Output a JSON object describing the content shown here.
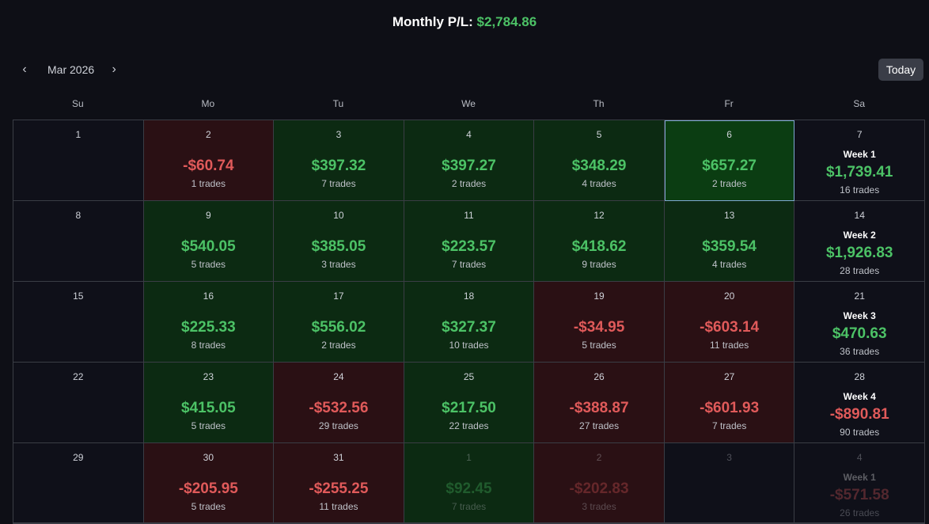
{
  "header": {
    "label": "Monthly P/L:",
    "amount": "$2,784.86"
  },
  "nav": {
    "month_label": "Mar 2026",
    "today_label": "Today"
  },
  "weekdays": [
    "Su",
    "Mo",
    "Tu",
    "We",
    "Th",
    "Fr",
    "Sa"
  ],
  "colors": {
    "positive": "#4cc266",
    "negative": "#e05a5a",
    "positive_bg": "#0c2a12",
    "negative_bg": "#2a1014"
  },
  "days": [
    {
      "day": "1",
      "pnl": "",
      "trades": "",
      "state": "empty"
    },
    {
      "day": "2",
      "pnl": "-$60.74",
      "trades": "1 trades",
      "state": "loss"
    },
    {
      "day": "3",
      "pnl": "$397.32",
      "trades": "7 trades",
      "state": "profit"
    },
    {
      "day": "4",
      "pnl": "$397.27",
      "trades": "2 trades",
      "state": "profit"
    },
    {
      "day": "5",
      "pnl": "$348.29",
      "trades": "4 trades",
      "state": "profit"
    },
    {
      "day": "6",
      "pnl": "$657.27",
      "trades": "2 trades",
      "state": "profit",
      "selected": true
    },
    {
      "week": "Week 1",
      "day": "7",
      "pnl": "$1,739.41",
      "trades": "16 trades",
      "state": "profit"
    },
    {
      "day": "8",
      "pnl": "",
      "trades": "",
      "state": "empty"
    },
    {
      "day": "9",
      "pnl": "$540.05",
      "trades": "5 trades",
      "state": "profit"
    },
    {
      "day": "10",
      "pnl": "$385.05",
      "trades": "3 trades",
      "state": "profit"
    },
    {
      "day": "11",
      "pnl": "$223.57",
      "trades": "7 trades",
      "state": "profit"
    },
    {
      "day": "12",
      "pnl": "$418.62",
      "trades": "9 trades",
      "state": "profit"
    },
    {
      "day": "13",
      "pnl": "$359.54",
      "trades": "4 trades",
      "state": "profit"
    },
    {
      "week": "Week 2",
      "day": "14",
      "pnl": "$1,926.83",
      "trades": "28 trades",
      "state": "profit"
    },
    {
      "day": "15",
      "pnl": "",
      "trades": "",
      "state": "empty"
    },
    {
      "day": "16",
      "pnl": "$225.33",
      "trades": "8 trades",
      "state": "profit"
    },
    {
      "day": "17",
      "pnl": "$556.02",
      "trades": "2 trades",
      "state": "profit"
    },
    {
      "day": "18",
      "pnl": "$327.37",
      "trades": "10 trades",
      "state": "profit"
    },
    {
      "day": "19",
      "pnl": "-$34.95",
      "trades": "5 trades",
      "state": "loss"
    },
    {
      "day": "20",
      "pnl": "-$603.14",
      "trades": "11 trades",
      "state": "loss"
    },
    {
      "week": "Week 3",
      "day": "21",
      "pnl": "$470.63",
      "trades": "36 trades",
      "state": "profit"
    },
    {
      "day": "22",
      "pnl": "",
      "trades": "",
      "state": "empty"
    },
    {
      "day": "23",
      "pnl": "$415.05",
      "trades": "5 trades",
      "state": "profit"
    },
    {
      "day": "24",
      "pnl": "-$532.56",
      "trades": "29 trades",
      "state": "loss"
    },
    {
      "day": "25",
      "pnl": "$217.50",
      "trades": "22 trades",
      "state": "profit"
    },
    {
      "day": "26",
      "pnl": "-$388.87",
      "trades": "27 trades",
      "state": "loss"
    },
    {
      "day": "27",
      "pnl": "-$601.93",
      "trades": "7 trades",
      "state": "loss"
    },
    {
      "week": "Week 4",
      "day": "28",
      "pnl": "-$890.81",
      "trades": "90 trades",
      "state": "loss"
    },
    {
      "day": "29",
      "pnl": "",
      "trades": "",
      "state": "empty"
    },
    {
      "day": "30",
      "pnl": "-$205.95",
      "trades": "5 trades",
      "state": "loss"
    },
    {
      "day": "31",
      "pnl": "-$255.25",
      "trades": "11 trades",
      "state": "loss"
    },
    {
      "day": "1",
      "pnl": "$92.45",
      "trades": "7 trades",
      "state": "profit",
      "dim": true
    },
    {
      "day": "2",
      "pnl": "-$202.83",
      "trades": "3 trades",
      "state": "loss",
      "dim": true
    },
    {
      "day": "3",
      "pnl": "",
      "trades": "",
      "state": "empty",
      "dim": true
    },
    {
      "week": "Week 1",
      "day": "4",
      "pnl": "-$571.58",
      "trades": "26 trades",
      "state": "loss",
      "dim": true
    }
  ]
}
